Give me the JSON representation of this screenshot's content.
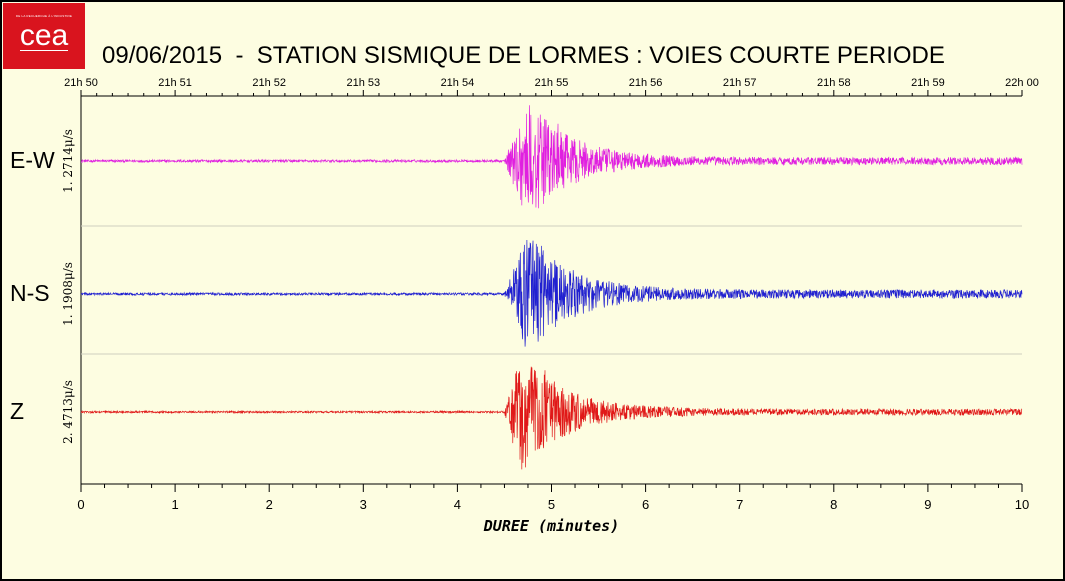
{
  "logo": {
    "name": "cea",
    "tagline": "DE LA RECHERCHE À L'INDUSTRIE",
    "word": "cea",
    "color": "#d9141e"
  },
  "chart_data": {
    "type": "line",
    "title": "09/06/2015  -  STATION SISMIQUE DE LORMES : VOIES COURTE PERIODE",
    "xlabel": "DUREE (minutes)",
    "xlim": [
      0,
      10
    ],
    "xticks": [
      "0",
      "1",
      "2",
      "3",
      "4",
      "5",
      "6",
      "7",
      "8",
      "9",
      "10"
    ],
    "top_axis_labels": [
      "21h 50",
      "21h 51",
      "21h 52",
      "21h 53",
      "21h 54",
      "21h 55",
      "21h 56",
      "21h 57",
      "21h 58",
      "21h 59",
      "22h 00"
    ],
    "grid": "horizontal separators between channels",
    "series": [
      {
        "name": "E-W",
        "scale_label": "1. 2714μ/s",
        "color": "#e020e0",
        "onset_minutes": 4.5,
        "peak_minutes": 4.75,
        "peak_fraction": 0.97,
        "noise_fraction": 0.02,
        "coda_fraction": 0.06
      },
      {
        "name": "N-S",
        "scale_label": "1. 1908μ/s",
        "color": "#2020d0",
        "onset_minutes": 4.5,
        "peak_minutes": 4.75,
        "peak_fraction": 0.99,
        "noise_fraction": 0.02,
        "coda_fraction": 0.07
      },
      {
        "name": "Z",
        "scale_label": "2. 4713μ/s",
        "color": "#e01818",
        "onset_minutes": 4.5,
        "peak_minutes": 4.68,
        "peak_fraction": 1.0,
        "noise_fraction": 0.015,
        "coda_fraction": 0.05
      }
    ]
  }
}
